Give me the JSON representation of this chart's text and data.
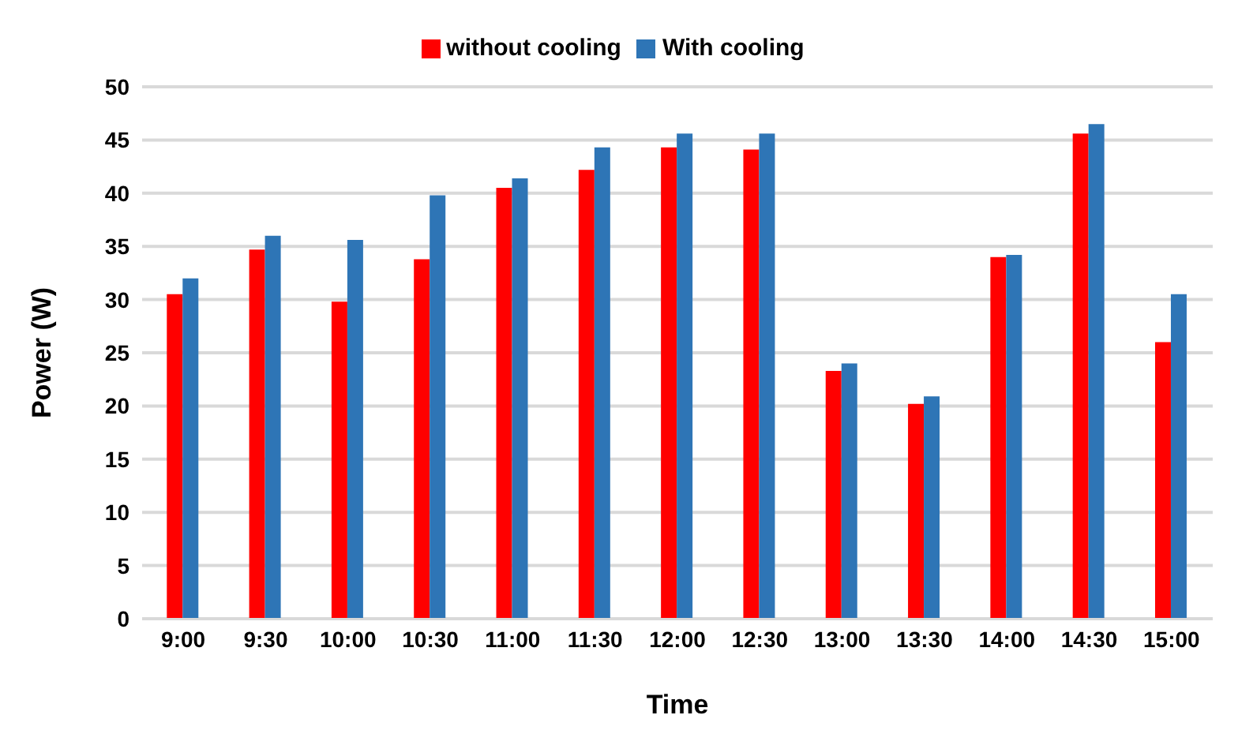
{
  "chart_data": {
    "type": "bar",
    "xlabel": "Time",
    "ylabel": "Power (W)",
    "categories": [
      "9:00",
      "9:30",
      "10:00",
      "10:30",
      "11:00",
      "11:30",
      "12:00",
      "12:30",
      "13:00",
      "13:30",
      "14:00",
      "14:30",
      "15:00"
    ],
    "series": [
      {
        "name": "without cooling",
        "color": "#ff0000",
        "values": [
          30.5,
          34.7,
          29.8,
          33.8,
          40.5,
          42.2,
          44.3,
          44.1,
          23.3,
          20.2,
          34.0,
          45.6,
          26.0
        ]
      },
      {
        "name": "With cooling",
        "color": "#2e75b6",
        "values": [
          32.0,
          36.0,
          35.6,
          39.8,
          41.4,
          44.3,
          45.6,
          45.6,
          24.0,
          20.9,
          34.2,
          46.5,
          30.5
        ]
      }
    ],
    "ylim": [
      0,
      50
    ],
    "yticks": [
      0,
      5,
      10,
      15,
      20,
      25,
      30,
      35,
      40,
      45,
      50
    ],
    "grid": "y",
    "legend": "top"
  }
}
